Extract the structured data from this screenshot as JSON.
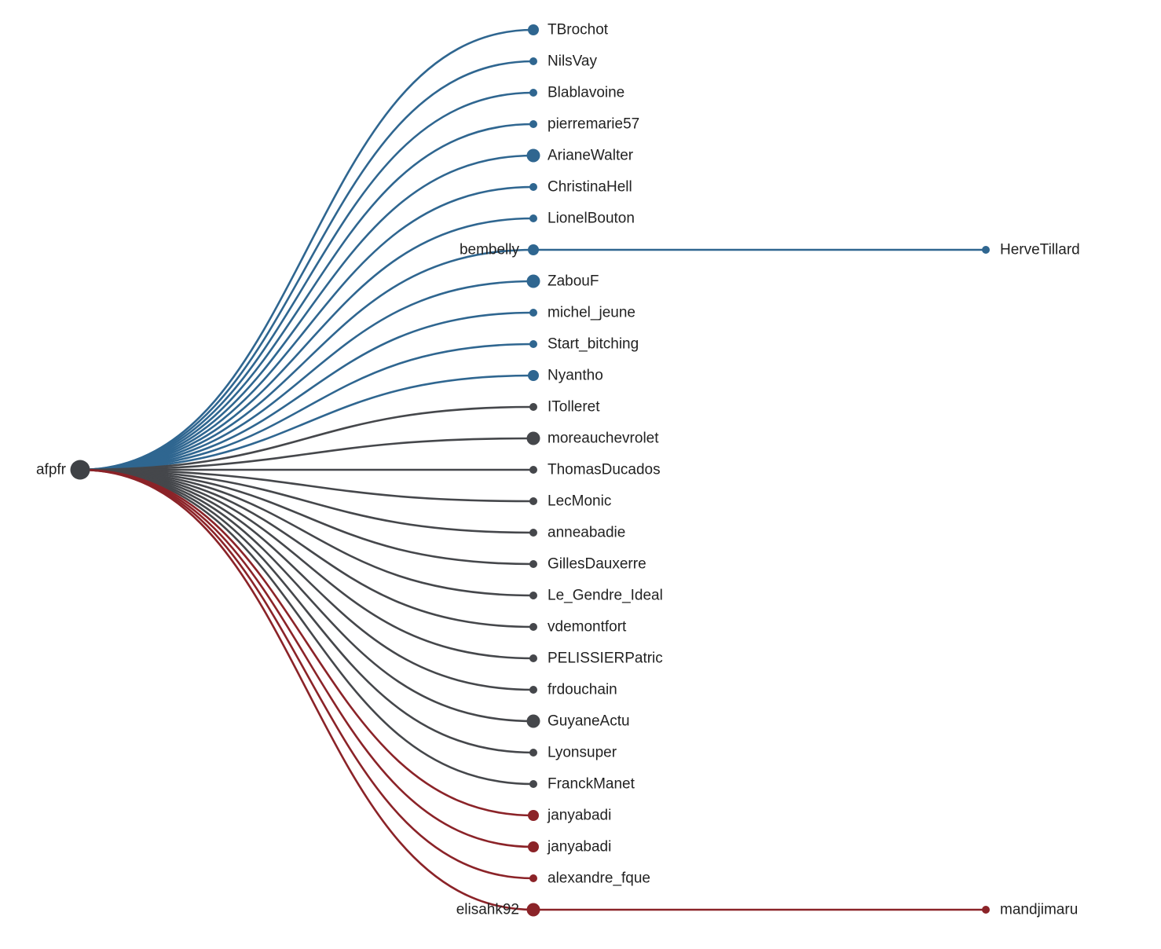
{
  "colors": {
    "blue": "#2f6690",
    "gray": "#45474b",
    "red": "#8b2328",
    "root": "#3f4246"
  },
  "root": {
    "name": "afpfr",
    "size": "large"
  },
  "children": [
    {
      "name": "TBrochot",
      "group": "blue",
      "size": "medium"
    },
    {
      "name": "NilsVay",
      "group": "blue",
      "size": "small"
    },
    {
      "name": "Blablavoine",
      "group": "blue",
      "size": "small"
    },
    {
      "name": "pierremarie57",
      "group": "blue",
      "size": "small"
    },
    {
      "name": "ArianeWalter",
      "group": "blue",
      "size": "large"
    },
    {
      "name": "ChristinaHell",
      "group": "blue",
      "size": "small"
    },
    {
      "name": "LionelBouton",
      "group": "blue",
      "size": "small"
    },
    {
      "name": "bembelly",
      "group": "blue",
      "size": "medium",
      "children": [
        {
          "name": "HerveTillard",
          "group": "blue",
          "size": "small"
        }
      ]
    },
    {
      "name": "ZabouF",
      "group": "blue",
      "size": "large"
    },
    {
      "name": "michel_jeune",
      "group": "blue",
      "size": "small"
    },
    {
      "name": "Start_bitching",
      "group": "blue",
      "size": "small"
    },
    {
      "name": "Nyantho",
      "group": "blue",
      "size": "medium"
    },
    {
      "name": "ITolleret",
      "group": "gray",
      "size": "small"
    },
    {
      "name": "moreauchevrolet",
      "group": "gray",
      "size": "large"
    },
    {
      "name": "ThomasDucados",
      "group": "gray",
      "size": "small"
    },
    {
      "name": "LecMonic",
      "group": "gray",
      "size": "small"
    },
    {
      "name": "anneabadie",
      "group": "gray",
      "size": "small"
    },
    {
      "name": "GillesDauxerre",
      "group": "gray",
      "size": "small"
    },
    {
      "name": "Le_Gendre_Ideal",
      "group": "gray",
      "size": "small"
    },
    {
      "name": "vdemontfort",
      "group": "gray",
      "size": "small"
    },
    {
      "name": "PELISSIERPatric",
      "group": "gray",
      "size": "small"
    },
    {
      "name": "frdouchain",
      "group": "gray",
      "size": "small"
    },
    {
      "name": "GuyaneActu",
      "group": "gray",
      "size": "large"
    },
    {
      "name": "Lyonsuper",
      "group": "gray",
      "size": "small"
    },
    {
      "name": "FranckManet",
      "group": "gray",
      "size": "small"
    },
    {
      "name": "janyabadi",
      "group": "red",
      "size": "medium"
    },
    {
      "name": "janyabadi",
      "group": "red",
      "size": "medium"
    },
    {
      "name": "alexandre_fque",
      "group": "red",
      "size": "small"
    },
    {
      "name": "elisahk92",
      "group": "red",
      "size": "large",
      "children": [
        {
          "name": "mandjimaru",
          "group": "red",
          "size": "small"
        }
      ]
    }
  ]
}
